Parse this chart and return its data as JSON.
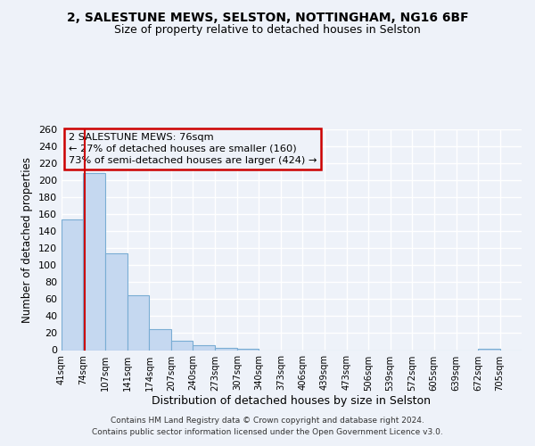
{
  "title1": "2, SALESTUNE MEWS, SELSTON, NOTTINGHAM, NG16 6BF",
  "title2": "Size of property relative to detached houses in Selston",
  "xlabel": "Distribution of detached houses by size in Selston",
  "ylabel": "Number of detached properties",
  "bar_labels": [
    "41sqm",
    "74sqm",
    "107sqm",
    "141sqm",
    "174sqm",
    "207sqm",
    "240sqm",
    "273sqm",
    "307sqm",
    "340sqm",
    "373sqm",
    "406sqm",
    "439sqm",
    "473sqm",
    "506sqm",
    "539sqm",
    "572sqm",
    "605sqm",
    "639sqm",
    "672sqm",
    "705sqm"
  ],
  "bar_values": [
    154,
    209,
    114,
    65,
    25,
    11,
    6,
    3,
    2,
    0,
    0,
    0,
    0,
    0,
    0,
    0,
    0,
    0,
    0,
    2,
    0
  ],
  "bar_color": "#c5d8f0",
  "bar_edge_color": "#7aadd4",
  "property_line_x": 76,
  "bin_edges": [
    41,
    74,
    107,
    141,
    174,
    207,
    240,
    273,
    307,
    340,
    373,
    406,
    439,
    473,
    506,
    539,
    572,
    605,
    639,
    672,
    705,
    738
  ],
  "property_line_color": "#cc0000",
  "annotation_box_color": "#cc0000",
  "ylim": [
    0,
    260
  ],
  "yticks": [
    0,
    20,
    40,
    60,
    80,
    100,
    120,
    140,
    160,
    180,
    200,
    220,
    240,
    260
  ],
  "annotation_title": "2 SALESTUNE MEWS: 76sqm",
  "annotation_line1": "← 27% of detached houses are smaller (160)",
  "annotation_line2": "73% of semi-detached houses are larger (424) →",
  "footer1": "Contains HM Land Registry data © Crown copyright and database right 2024.",
  "footer2": "Contains public sector information licensed under the Open Government Licence v3.0.",
  "bg_color": "#eef2f9",
  "grid_color": "#ffffff"
}
